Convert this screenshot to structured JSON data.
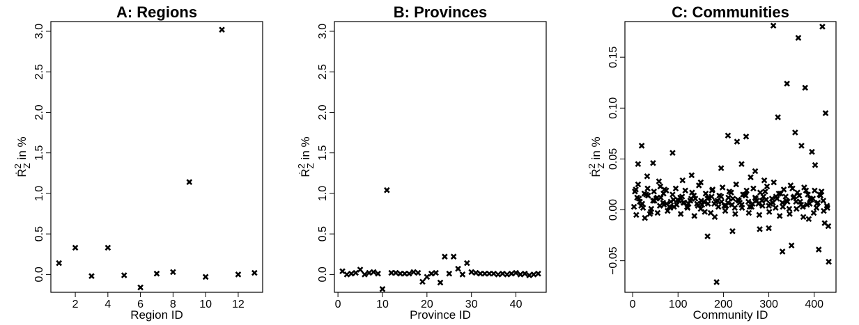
{
  "chart_data": [
    {
      "type": "scatter",
      "title": "A: Regions",
      "xlabel": "Region ID",
      "ylabel_main": "Ṙ",
      "ylabel_sup": "2",
      "ylabel_sub": "Z",
      "ylabel_rest": " in  %",
      "xlim": [
        0.5,
        13.5
      ],
      "ylim": [
        -0.22,
        3.12
      ],
      "xticks": [
        2,
        4,
        6,
        8,
        10,
        12
      ],
      "xtick_labels": [
        "2",
        "4",
        "6",
        "8",
        "10",
        "12"
      ],
      "yticks": [
        0.0,
        0.5,
        1.0,
        1.5,
        2.0,
        2.5,
        3.0
      ],
      "ytick_labels": [
        "0.0",
        "0.5",
        "1.0",
        "1.5",
        "2.0",
        "2.5",
        "3.0"
      ],
      "x": [
        1,
        2,
        3,
        4,
        5,
        6,
        7,
        8,
        9,
        10,
        11,
        12,
        13
      ],
      "y": [
        0.14,
        0.33,
        -0.02,
        0.33,
        -0.01,
        -0.16,
        0.01,
        0.03,
        1.14,
        -0.03,
        3.02,
        0.0,
        0.02
      ]
    },
    {
      "type": "scatter",
      "title": "B: Provinces",
      "xlabel": "Province ID",
      "ylabel_main": "Ṙ",
      "ylabel_sup": "2",
      "ylabel_sub": "Z",
      "ylabel_rest": " in  %",
      "xlim": [
        -0.8,
        46.8
      ],
      "ylim": [
        -0.22,
        3.12
      ],
      "xticks": [
        0,
        10,
        20,
        30,
        40
      ],
      "xtick_labels": [
        "0",
        "10",
        "20",
        "30",
        "40"
      ],
      "yticks": [
        0.0,
        0.5,
        1.0,
        1.5,
        2.0,
        2.5,
        3.0
      ],
      "ytick_labels": [
        "0.0",
        "0.5",
        "1.0",
        "1.5",
        "2.0",
        "2.5",
        "3.0"
      ],
      "x": [
        1,
        2,
        3,
        4,
        5,
        6,
        7,
        8,
        9,
        10,
        11,
        12,
        13,
        14,
        15,
        16,
        17,
        18,
        19,
        20,
        21,
        22,
        23,
        24,
        25,
        26,
        27,
        28,
        29,
        30,
        31,
        32,
        33,
        34,
        35,
        36,
        37,
        38,
        39,
        40,
        41,
        42,
        43,
        44,
        45
      ],
      "y": [
        0.04,
        0.0,
        0.01,
        0.02,
        0.06,
        0.0,
        0.02,
        0.03,
        0.01,
        -0.18,
        1.04,
        0.02,
        0.02,
        0.01,
        0.01,
        0.01,
        0.03,
        0.02,
        -0.09,
        -0.03,
        0.01,
        0.02,
        -0.1,
        0.22,
        0.01,
        0.22,
        0.07,
        0.0,
        0.14,
        0.03,
        0.02,
        0.01,
        0.01,
        0.01,
        0.01,
        0.0,
        0.01,
        0.0,
        0.01,
        0.02,
        0.0,
        0.01,
        -0.01,
        0.0,
        0.01
      ]
    },
    {
      "type": "scatter",
      "title": "C: Communities",
      "xlabel": "Community ID",
      "ylabel_main": "Ṙ",
      "ylabel_sup": "2",
      "ylabel_sub": "Z",
      "ylabel_rest": " in  %",
      "xlim": [
        -17,
        448
      ],
      "ylim": [
        -0.081,
        0.185
      ],
      "xticks": [
        0,
        100,
        200,
        300,
        400
      ],
      "xtick_labels": [
        "0",
        "100",
        "200",
        "300",
        "400"
      ],
      "yticks": [
        -0.05,
        0.0,
        0.05,
        0.1,
        0.15
      ],
      "ytick_labels": [
        "−0.05",
        "0.00",
        "0.05",
        "0.10",
        "0.15"
      ],
      "x": [
        5,
        10,
        16,
        23,
        30,
        38,
        45,
        52,
        60,
        68,
        75,
        83,
        90,
        97,
        105,
        112,
        120,
        127,
        135,
        142,
        150,
        157,
        165,
        172,
        180,
        187,
        195,
        202,
        210,
        217,
        225,
        232,
        240,
        247,
        255,
        262,
        270,
        277,
        285,
        292,
        300,
        307,
        315,
        322,
        330,
        337,
        345,
        352,
        360,
        367,
        375,
        382,
        390,
        397,
        405,
        412,
        420,
        428,
        3,
        8,
        14,
        21,
        27,
        34,
        41,
        48,
        55,
        62,
        69,
        77,
        84,
        91,
        99,
        106,
        114,
        121,
        129,
        136,
        144,
        151,
        159,
        166,
        174,
        181,
        189,
        196,
        204,
        211,
        219,
        226,
        234,
        241,
        249,
        256,
        264,
        271,
        279,
        286,
        294,
        301,
        309,
        316,
        324,
        331,
        339,
        346,
        354,
        361,
        369,
        376,
        384,
        391,
        399,
        406,
        414,
        421,
        429,
        7,
        12,
        19,
        26,
        33,
        40,
        47,
        54,
        61,
        67,
        74,
        81,
        88,
        95,
        102,
        109,
        116,
        123,
        131,
        138,
        146,
        153,
        161,
        168,
        176,
        183,
        191,
        198,
        206,
        213,
        221,
        228,
        236,
        243,
        251,
        258,
        266,
        273,
        281,
        288,
        296,
        303,
        311,
        318,
        326,
        333,
        341,
        348,
        356,
        363,
        371,
        378,
        386,
        393,
        401,
        408,
        416,
        423,
        431,
        12,
        20,
        32,
        45,
        58,
        70,
        88,
        110,
        130,
        150,
        165,
        175,
        185,
        195,
        210,
        220,
        230,
        240,
        250,
        260,
        270,
        280,
        290,
        300,
        310,
        320,
        330,
        340,
        350,
        358,
        365,
        372,
        380,
        388,
        395,
        402,
        410,
        418,
        425,
        432
      ],
      "y": [
        0.018,
        0.012,
        0.008,
        0.002,
        0.015,
        -0.004,
        0.009,
        0.011,
        0.004,
        0.016,
        0.006,
        0.002,
        0.01,
        0.005,
        0.012,
        0.007,
        0.003,
        0.009,
        0.014,
        0.006,
        0.001,
        0.008,
        0.011,
        -0.003,
        0.006,
        0.009,
        0.013,
        0.004,
        0.007,
        0.017,
        0.002,
        0.01,
        0.005,
        0.015,
        0.008,
        0.003,
        0.012,
        0.006,
        0.009,
        0.018,
        0.004,
        0.011,
        0.002,
        0.016,
        0.007,
        0.013,
        0.001,
        0.021,
        0.008,
        0.014,
        0.003,
        0.019,
        0.006,
        0.011,
        0.002,
        0.015,
        0.009,
        0.004,
        0.003,
        -0.005,
        0.011,
        0.006,
        -0.008,
        0.014,
        0.001,
        0.009,
        -0.003,
        0.012,
        0.005,
        -0.001,
        0.008,
        0.003,
        0.01,
        -0.004,
        0.007,
        0.002,
        0.011,
        -0.006,
        0.004,
        0.009,
        -0.002,
        0.006,
        0.013,
        -0.007,
        0.003,
        0.008,
        -0.001,
        0.012,
        0.005,
        -0.004,
        0.009,
        0.002,
        0.014,
        -0.003,
        0.006,
        0.011,
        -0.005,
        0.004,
        0.01,
        -0.002,
        0.007,
        0.013,
        -0.006,
        0.003,
        0.009,
        -0.004,
        0.012,
        0.001,
        0.008,
        -0.007,
        0.005,
        0.011,
        -0.003,
        0.006,
        0.014,
        -0.001,
        0.002,
        0.02,
        0.025,
        0.004,
        0.016,
        0.021,
        -0.002,
        0.018,
        0.012,
        0.023,
        0.007,
        0.019,
        0.003,
        0.015,
        0.021,
        0.009,
        0.013,
        0.019,
        0.006,
        0.017,
        0.011,
        0.024,
        0.005,
        0.016,
        0.012,
        0.02,
        0.008,
        0.014,
        0.022,
        0.004,
        0.018,
        0.011,
        0.025,
        0.007,
        0.015,
        0.019,
        0.003,
        0.021,
        0.009,
        0.017,
        0.013,
        0.023,
        0.006,
        0.027,
        0.011,
        0.016,
        0.02,
        0.008,
        0.024,
        0.013,
        0.017,
        0.005,
        0.022,
        0.015,
        0.01,
        0.019,
        0.007,
        0.018,
        -0.013,
        -0.016,
        0.045,
        0.063,
        0.033,
        0.046,
        0.028,
        0.02,
        0.056,
        0.029,
        0.034,
        0.027,
        -0.026,
        0.019,
        -0.071,
        0.041,
        0.073,
        -0.021,
        0.067,
        0.045,
        0.072,
        0.032,
        0.038,
        -0.019,
        0.029,
        -0.018,
        0.181,
        0.091,
        -0.041,
        0.124,
        -0.035,
        0.076,
        0.169,
        0.063,
        0.12,
        -0.009,
        0.057,
        0.044,
        -0.039,
        0.18,
        0.095,
        -0.051
      ]
    }
  ]
}
